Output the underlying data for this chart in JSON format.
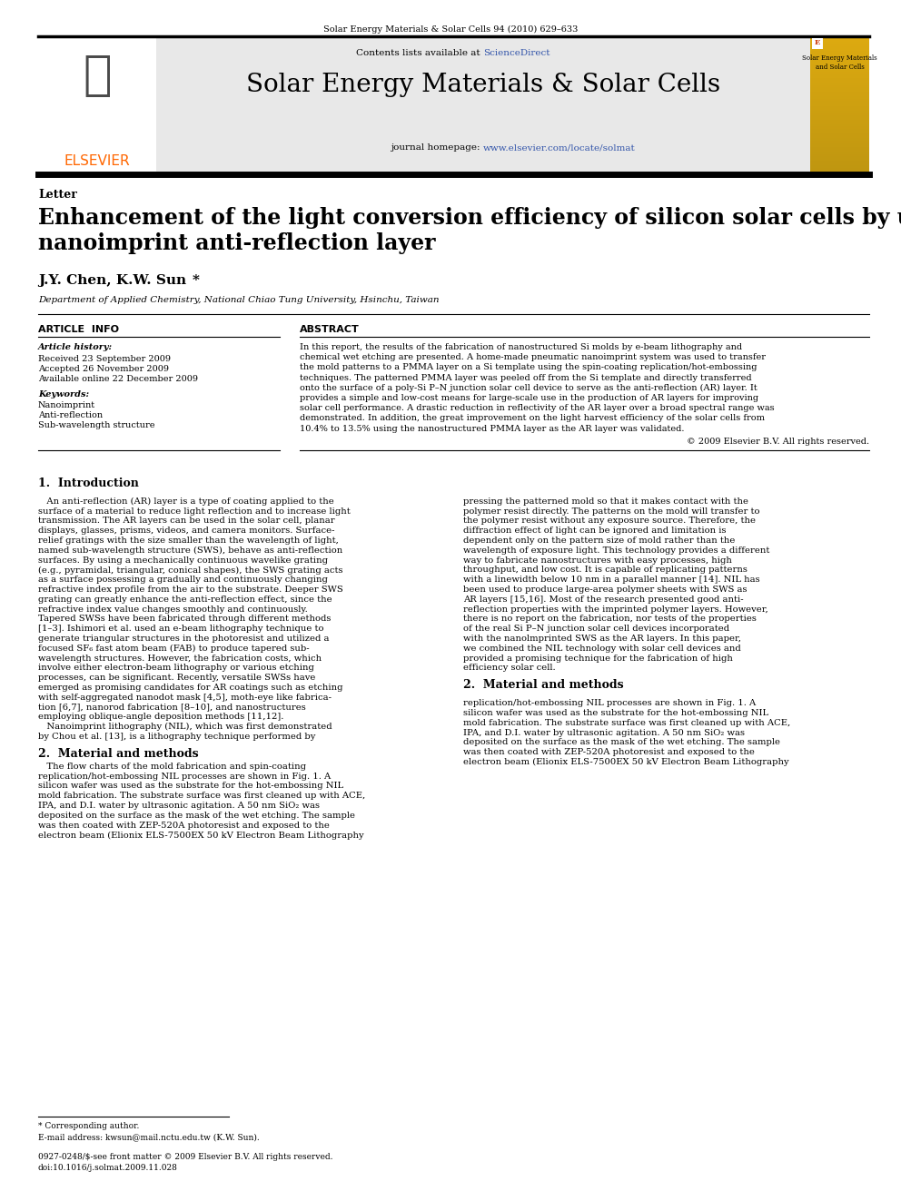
{
  "page_bg": "#ffffff",
  "top_journal_ref": "Solar Energy Materials & Solar Cells 94 (2010) 629–633",
  "header_bg": "#e8e8e8",
  "sciencedirect_color": "#3355aa",
  "journal_title": "Solar Energy Materials & Solar Cells",
  "journal_homepage_prefix": "journal homepage: ",
  "journal_homepage_url": "www.elsevier.com/locate/solmat",
  "journal_homepage_url_color": "#3355aa",
  "section_label": "Letter",
  "paper_title_line1": "Enhancement of the light conversion efficiency of silicon solar cells by using",
  "paper_title_line2": "nanoimprint anti-reflection layer",
  "authors_plain": "J.Y. Chen, K.W. Sun",
  "authors_star": "*",
  "affiliation": "Department of Applied Chemistry, National Chiao Tung University, Hsinchu, Taiwan",
  "article_info_header": "ARTICLE  INFO",
  "abstract_header": "ABSTRACT",
  "article_history_label": "Article history:",
  "received": "Received 23 September 2009",
  "accepted": "Accepted 26 November 2009",
  "available": "Available online 22 December 2009",
  "keywords_label": "Keywords:",
  "keywords": [
    "Nanoimprint",
    "Anti-reflection",
    "Sub-wavelength structure"
  ],
  "abstract_lines": [
    "In this report, the results of the fabrication of nanostructured Si molds by e-beam lithography and",
    "chemical wet etching are presented. A home-made pneumatic nanoimprint system was used to transfer",
    "the mold patterns to a PMMA layer on a Si template using the spin-coating replication/hot-embossing",
    "techniques. The patterned PMMA layer was peeled off from the Si template and directly transferred",
    "onto the surface of a poly-Si P–N junction solar cell device to serve as the anti-reflection (AR) layer. It",
    "provides a simple and low-cost means for large-scale use in the production of AR layers for improving",
    "solar cell performance. A drastic reduction in reflectivity of the AR layer over a broad spectral range was",
    "demonstrated. In addition, the great improvement on the light harvest efficiency of the solar cells from",
    "10.4% to 13.5% using the nanostructured PMMA layer as the AR layer was validated."
  ],
  "copyright": "© 2009 Elsevier B.V. All rights reserved.",
  "section1_title": "1.  Introduction",
  "intro_col1_lines": [
    "   An anti-reflection (AR) layer is a type of coating applied to the",
    "surface of a material to reduce light reflection and to increase light",
    "transmission. The AR layers can be used in the solar cell, planar",
    "displays, glasses, prisms, videos, and camera monitors. Surface-",
    "relief gratings with the size smaller than the wavelength of light,",
    "named sub-wavelength structure (SWS), behave as anti-reflection",
    "surfaces. By using a mechanically continuous wavelike grating",
    "(e.g., pyramidal, triangular, conical shapes), the SWS grating acts",
    "as a surface possessing a gradually and continuously changing",
    "refractive index profile from the air to the substrate. Deeper SWS",
    "grating can greatly enhance the anti-reflection effect, since the",
    "refractive index value changes smoothly and continuously.",
    "Tapered SWSs have been fabricated through different methods",
    "[1–3]. Ishimori et al. used an e-beam lithography technique to",
    "generate triangular structures in the photoresist and utilized a",
    "focused SF₆ fast atom beam (FAB) to produce tapered sub-",
    "wavelength structures. However, the fabrication costs, which",
    "involve either electron-beam lithography or various etching",
    "processes, can be significant. Recently, versatile SWSs have",
    "emerged as promising candidates for AR coatings such as etching",
    "with self-aggregated nanodot mask [4,5], moth-eye like fabrica-",
    "tion [6,7], nanorod fabrication [8–10], and nanostructures",
    "employing oblique-angle deposition methods [11,12].",
    "   Nanoimprint lithography (NIL), which was first demonstrated",
    "by Chou et al. [13], is a lithography technique performed by"
  ],
  "intro_col2_lines": [
    "pressing the patterned mold so that it makes contact with the",
    "polymer resist directly. The patterns on the mold will transfer to",
    "the polymer resist without any exposure source. Therefore, the",
    "diffraction effect of light can be ignored and limitation is",
    "dependent only on the pattern size of mold rather than the",
    "wavelength of exposure light. This technology provides a different",
    "way to fabricate nanostructures with easy processes, high",
    "throughput, and low cost. It is capable of replicating patterns",
    "with a linewidth below 10 nm in a parallel manner [14]. NIL has",
    "been used to produce large-area polymer sheets with SWS as",
    "AR layers [15,16]. Most of the research presented good anti-",
    "reflection properties with the imprinted polymer layers. However,",
    "there is no report on the fabrication, nor tests of the properties",
    "of the real Si P–N junction solar cell devices incorporated",
    "with the nanolmprinted SWS as the AR layers. In this paper,",
    "we combined the NIL technology with solar cell devices and",
    "provided a promising technique for the fabrication of high",
    "efficiency solar cell."
  ],
  "section2_title": "2.  Material and methods",
  "sec2_col1_lines": [
    "   The flow charts of the mold fabrication and spin-coating",
    "replication/hot-embossing NIL processes are shown in Fig. 1. A",
    "silicon wafer was used as the substrate for the hot-embossing NIL",
    "mold fabrication. The substrate surface was first cleaned up with ACE,",
    "IPA, and D.I. water by ultrasonic agitation. A 50 nm SiO₂ was",
    "deposited on the surface as the mask of the wet etching. The sample",
    "was then coated with ZEP-520A photoresist and exposed to the",
    "electron beam (Elionix ELS-7500EX 50 kV Electron Beam Lithography"
  ],
  "sec2_col2_lines": [
    "   The flow charts of the mold fabrication and spin-coating",
    "replication/hot-embossing NIL processes are shown in Fig. 1. A"
  ],
  "footnote_star": "* Corresponding author.",
  "footnote_email": "E-mail address: kwsun@mail.nctu.edu.tw (K.W. Sun).",
  "footer_text1": "0927-0248/$-see front matter © 2009 Elsevier B.V. All rights reserved.",
  "footer_text2": "doi:10.1016/j.solmat.2009.11.028",
  "elsevier_orange": "#FF6600",
  "cover_bg1": "#f0c040",
  "cover_bg2": "#e8b030"
}
